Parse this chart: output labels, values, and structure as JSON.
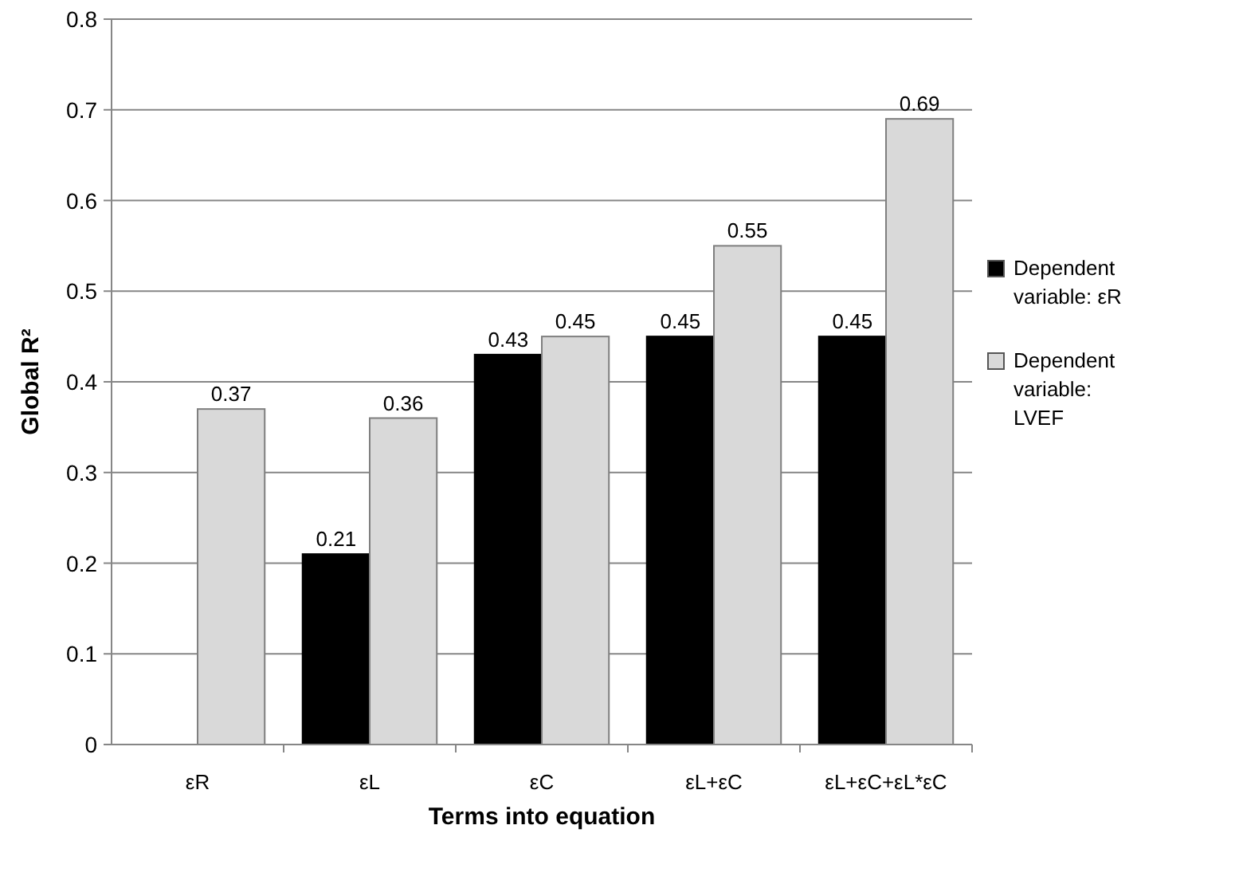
{
  "chart_data": {
    "type": "bar",
    "xlabel": "Terms into equation",
    "ylabel": "Global R²",
    "categories": [
      "εR",
      "εL",
      "εC",
      "εL+εC",
      "εL+εC+εL*εC"
    ],
    "series": [
      {
        "name": "Dependent variable: εR",
        "color": "#000000",
        "values": [
          null,
          0.21,
          0.43,
          0.45,
          0.45
        ]
      },
      {
        "name": "Dependent variable: LVEF",
        "color": "#d9d9d9",
        "values": [
          0.37,
          0.36,
          0.45,
          0.55,
          0.69
        ]
      }
    ],
    "ylim": [
      0,
      0.8
    ],
    "yticks": [
      0,
      0.1,
      0.2,
      0.3,
      0.4,
      0.5,
      0.6,
      0.7,
      0.8
    ],
    "grid": "y",
    "legend": "right",
    "data_labels": true
  }
}
